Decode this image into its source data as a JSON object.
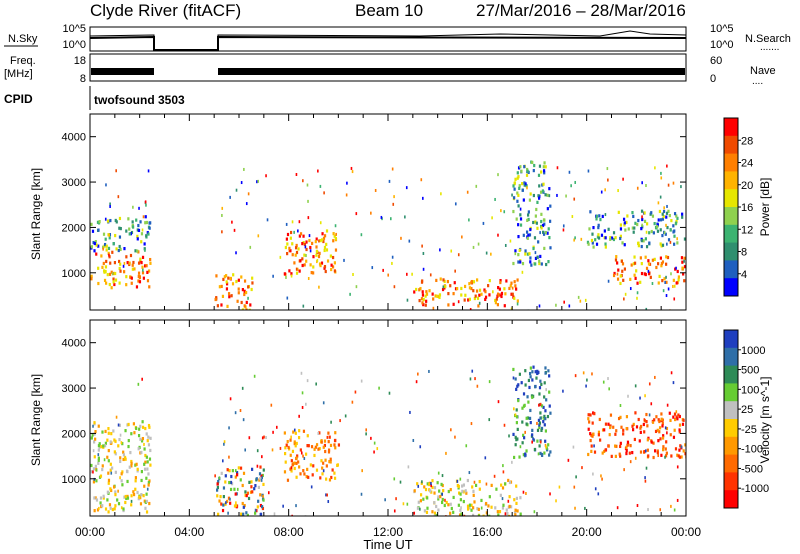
{
  "header": {
    "station": "Clyde River (fitACF)",
    "beam": "Beam 10",
    "date_range": "27/Mar/2016 – 28/Mar/2016"
  },
  "noise_panel": {
    "left_label": "N.Sky",
    "left_ticks": [
      "10^5",
      "10^0"
    ],
    "right_ticks": [
      "10^5",
      "10^0"
    ],
    "right_label": "N.Search",
    "right_dots": "......."
  },
  "freq_panel": {
    "left_label_1": "Freq.",
    "left_label_2": "[MHz]",
    "left_ticks": [
      "18",
      "8"
    ],
    "right_ticks": [
      "60",
      "0"
    ],
    "right_label": "Nave",
    "right_dots": "...."
  },
  "cpid": {
    "label": "CPID",
    "value": "twofsound 3503"
  },
  "x_axis": {
    "title": "Time UT",
    "ticks": [
      "00:00",
      "04:00",
      "08:00",
      "12:00",
      "16:00",
      "20:00",
      "00:00"
    ]
  },
  "chart_data": [
    {
      "type": "heatmap",
      "name": "power",
      "ylabel": "Slant Range [km]",
      "xlabel": "Time UT",
      "x_range_hours": [
        0,
        24
      ],
      "ylim_km": [
        180,
        4500
      ],
      "y_ticks": [
        1000,
        2000,
        3000,
        4000
      ],
      "colorbar": {
        "label": "Power [dB]",
        "tick_labels": [
          "28",
          "24",
          "20",
          "16",
          "12",
          "8",
          "4"
        ],
        "colors": [
          "#ff0000",
          "#f04a00",
          "#ff7f00",
          "#ffb300",
          "#e6e600",
          "#8fd14f",
          "#3cb371",
          "#2f8f6f",
          "#1f5fbf",
          "#0000ff"
        ]
      },
      "data_gaps_hours": [
        [
          2.4,
          5.0
        ]
      ],
      "features": [
        {
          "t": [
            0.0,
            2.4
          ],
          "range_km": [
            700,
            1500
          ],
          "level": "high"
        },
        {
          "t": [
            0.0,
            2.4
          ],
          "range_km": [
            1500,
            2300
          ],
          "level": "medium"
        },
        {
          "t": [
            5.0,
            6.5
          ],
          "range_km": [
            200,
            1000
          ],
          "level": "high"
        },
        {
          "t": [
            7.8,
            10.0
          ],
          "range_km": [
            1000,
            2000
          ],
          "level": "high"
        },
        {
          "t": [
            13.0,
            17.3
          ],
          "range_km": [
            300,
            900
          ],
          "level": "high"
        },
        {
          "t": [
            17.0,
            18.5
          ],
          "range_km": [
            1200,
            3500
          ],
          "level": "medium"
        },
        {
          "t": [
            21.0,
            24.0
          ],
          "range_km": [
            800,
            1400
          ],
          "level": "high"
        },
        {
          "t": [
            20.0,
            24.0
          ],
          "range_km": [
            1600,
            2400
          ],
          "level": "medium"
        }
      ]
    },
    {
      "type": "heatmap",
      "name": "velocity",
      "ylabel": "Slant Range [km]",
      "xlabel": "Time UT",
      "x_range_hours": [
        0,
        24
      ],
      "ylim_km": [
        180,
        4500
      ],
      "y_ticks": [
        1000,
        2000,
        3000,
        4000
      ],
      "colorbar": {
        "label": "Velocity [m s^-1]",
        "tick_labels": [
          "1000",
          "500",
          "100",
          "25",
          "-25",
          "-100",
          "-500",
          "-1000"
        ],
        "colors": [
          "#1f3fbf",
          "#2f6fa8",
          "#2e8b57",
          "#66cc33",
          "#c0c0c0",
          "#ffcc00",
          "#ff9900",
          "#ff6a00",
          "#ff3300",
          "#ff0000"
        ]
      },
      "data_gaps_hours": [
        [
          2.4,
          5.0
        ]
      ],
      "features": [
        {
          "t": [
            0.0,
            2.4
          ],
          "range_km": [
            300,
            2300
          ],
          "velocity": "slightly negative"
        },
        {
          "t": [
            5.0,
            7.0
          ],
          "range_km": [
            200,
            1300
          ],
          "velocity": "mixed"
        },
        {
          "t": [
            7.8,
            10.0
          ],
          "range_km": [
            1000,
            2100
          ],
          "velocity": "negative"
        },
        {
          "t": [
            13.0,
            17.3
          ],
          "range_km": [
            200,
            1000
          ],
          "velocity": "slightly negative"
        },
        {
          "t": [
            17.0,
            18.5
          ],
          "range_km": [
            1500,
            3500
          ],
          "velocity": "positive"
        },
        {
          "t": [
            20.0,
            24.0
          ],
          "range_km": [
            1500,
            2500
          ],
          "velocity": "strongly negative"
        }
      ]
    }
  ]
}
